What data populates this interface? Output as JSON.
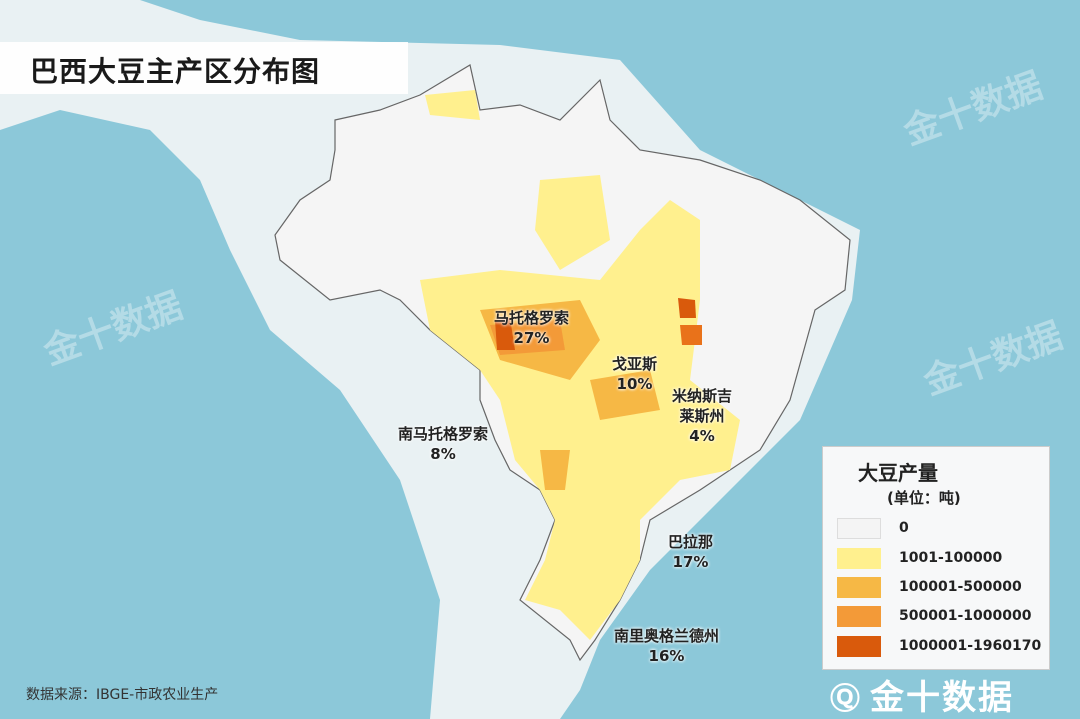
{
  "title": "巴西大豆主产区分布图",
  "regions": [
    {
      "name": "马托格罗索",
      "share": "27%"
    },
    {
      "name": "戈亚斯",
      "share": "10%"
    },
    {
      "name": "米纳斯吉莱斯州",
      "name_line1": "米纳斯吉",
      "name_line2": "莱斯州",
      "share": "4%"
    },
    {
      "name": "南马托格罗索",
      "share": "8%"
    },
    {
      "name": "巴拉那",
      "share": "17%"
    },
    {
      "name": "南里奥格兰德州",
      "share": "16%"
    }
  ],
  "legend": {
    "title": "大豆产量",
    "unit": "(单位：吨)",
    "items": [
      {
        "label": "0",
        "color": "#f4f4f4"
      },
      {
        "label": "1001-100000",
        "color": "#fff08e"
      },
      {
        "label": "100001-500000",
        "color": "#f6b845"
      },
      {
        "label": "500001-1000000",
        "color": "#f39a38"
      },
      {
        "label": "1000001-1960170",
        "color": "#d95a0c"
      }
    ]
  },
  "source": "数据来源：IBGE-市政农业生产",
  "logo": "金十数据",
  "colors": {
    "sea": "#8cc8d9",
    "land": "#e9f1f3",
    "brazil": "#f5f5f5"
  }
}
